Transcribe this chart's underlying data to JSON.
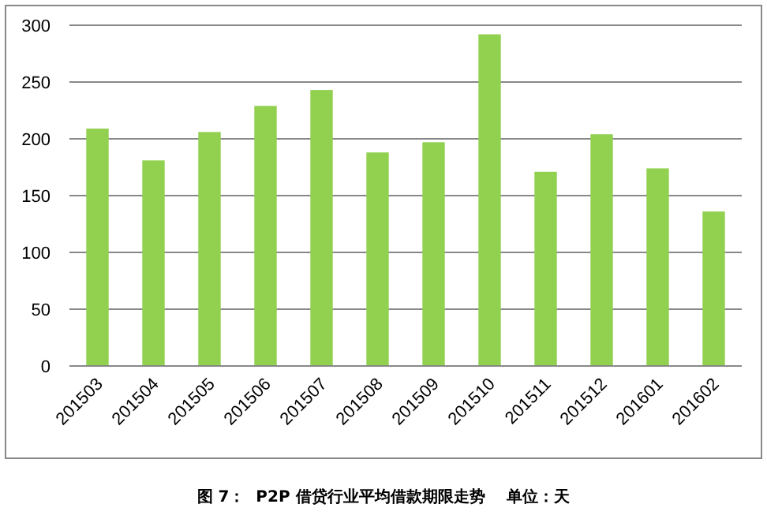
{
  "chart_data": {
    "type": "bar",
    "title": "图 7：  P2P 借贷行业平均借款期限走势    单位：天",
    "categories": [
      "201503",
      "201504",
      "201505",
      "201506",
      "201507",
      "201508",
      "201509",
      "201510",
      "201511",
      "201512",
      "201601",
      "201602"
    ],
    "values": [
      209,
      181,
      206,
      229,
      243,
      188,
      197,
      292,
      171,
      204,
      174,
      136
    ],
    "color": "#92d050",
    "ylim": [
      0,
      300
    ],
    "yticks": [
      0,
      50,
      100,
      150,
      200,
      250,
      300
    ],
    "grid": "y"
  }
}
